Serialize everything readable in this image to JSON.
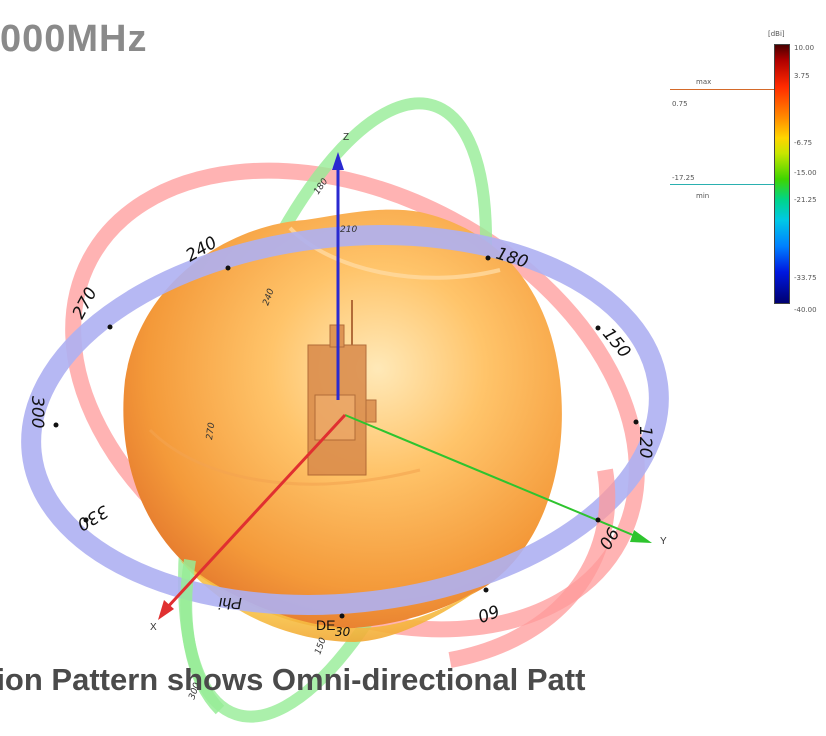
{
  "title": "000MHz",
  "caption": "tion Pattern shows Omni-directional Patt",
  "axes": {
    "z": "Z",
    "y": "Y",
    "x": "X"
  },
  "phi_ring_labels": [
    "240",
    "270",
    "300",
    "330",
    "180",
    "150",
    "120",
    "90",
    "60",
    "30"
  ],
  "phi_labels": [
    "Phi",
    "DE"
  ],
  "theta_ring_labels": [
    "210",
    "240",
    "270",
    "300",
    "180",
    "150"
  ],
  "legend": {
    "unit": "[dBi]",
    "ticks": [
      "10.00",
      "3.75",
      "-6.75",
      "-15.00",
      "-21.25",
      "-33.75",
      "-40.00"
    ],
    "max_label": "max",
    "max_value": "0.75",
    "min_label": "min",
    "min_value": "-17.25"
  },
  "colors": {
    "phi_ring": "#a9a9f0",
    "theta_ring": "#ff8f8f",
    "green_ring": "#8fe88f",
    "pattern_light": "#ffd08a",
    "pattern_dark": "#f08a2a",
    "z_axis": "#2a2ad0",
    "y_axis": "#2ec42e",
    "x_axis": "#e03030",
    "max_marker": "#d46a2a",
    "min_marker": "#2ab0b0"
  }
}
